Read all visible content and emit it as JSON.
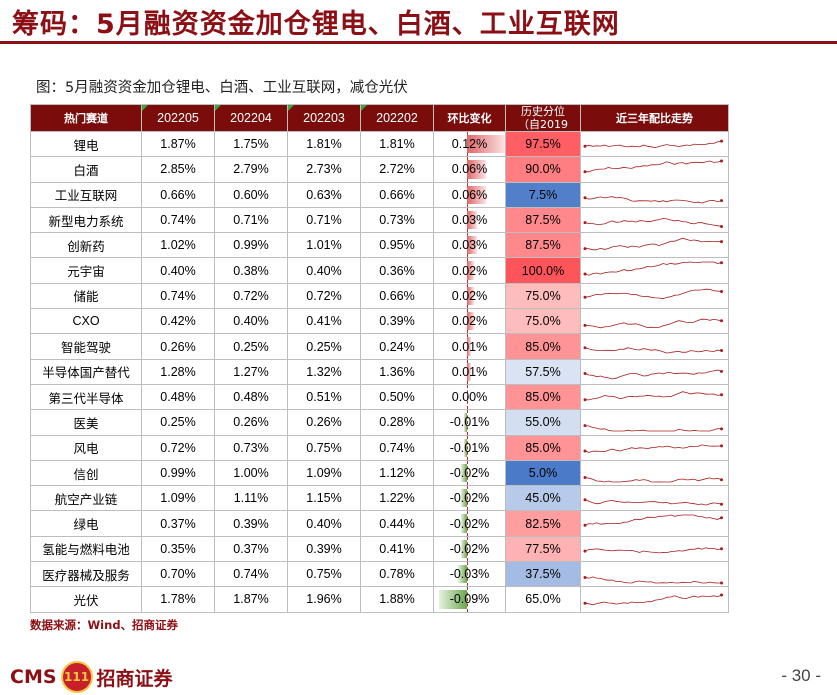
{
  "title": "筹码：5月融资资金加仓锂电、白酒、工业互联网",
  "figure_title": "图：5月融资资金加仓锂电、白酒、工业互联网，减仓光伏",
  "headers": [
    "热门赛道",
    "202205",
    "202204",
    "202203",
    "202202",
    "环比变化",
    "历史分位",
    "（自2019",
    "近三年配比走势"
  ],
  "rows": [
    {
      "name": "锂电",
      "v": [
        "1.87%",
        "1.75%",
        "1.81%",
        "1.81%"
      ],
      "chg": "0.12%",
      "chg_val": 0.12,
      "pct": "97.5%",
      "pct_val": 97.5
    },
    {
      "name": "白酒",
      "v": [
        "2.85%",
        "2.79%",
        "2.73%",
        "2.72%"
      ],
      "chg": "0.06%",
      "chg_val": 0.06,
      "pct": "90.0%",
      "pct_val": 90.0
    },
    {
      "name": "工业互联网",
      "v": [
        "0.66%",
        "0.60%",
        "0.63%",
        "0.66%"
      ],
      "chg": "0.06%",
      "chg_val": 0.06,
      "pct": "7.5%",
      "pct_val": 7.5
    },
    {
      "name": "新型电力系统",
      "v": [
        "0.74%",
        "0.71%",
        "0.71%",
        "0.73%"
      ],
      "chg": "0.03%",
      "chg_val": 0.03,
      "pct": "87.5%",
      "pct_val": 87.5
    },
    {
      "name": "创新药",
      "v": [
        "1.02%",
        "0.99%",
        "1.01%",
        "0.95%"
      ],
      "chg": "0.03%",
      "chg_val": 0.03,
      "pct": "87.5%",
      "pct_val": 87.5
    },
    {
      "name": "元宇宙",
      "v": [
        "0.40%",
        "0.38%",
        "0.40%",
        "0.36%"
      ],
      "chg": "0.02%",
      "chg_val": 0.02,
      "pct": "100.0%",
      "pct_val": 100.0
    },
    {
      "name": "储能",
      "v": [
        "0.74%",
        "0.72%",
        "0.72%",
        "0.66%"
      ],
      "chg": "0.02%",
      "chg_val": 0.02,
      "pct": "75.0%",
      "pct_val": 75.0
    },
    {
      "name": "CXO",
      "v": [
        "0.42%",
        "0.40%",
        "0.41%",
        "0.39%"
      ],
      "chg": "0.02%",
      "chg_val": 0.02,
      "pct": "75.0%",
      "pct_val": 75.0
    },
    {
      "name": "智能驾驶",
      "v": [
        "0.26%",
        "0.25%",
        "0.25%",
        "0.24%"
      ],
      "chg": "0.01%",
      "chg_val": 0.01,
      "pct": "85.0%",
      "pct_val": 85.0
    },
    {
      "name": "半导体国产替代",
      "v": [
        "1.28%",
        "1.27%",
        "1.32%",
        "1.36%"
      ],
      "chg": "0.01%",
      "chg_val": 0.01,
      "pct": "57.5%",
      "pct_val": 57.5
    },
    {
      "name": "第三代半导体",
      "v": [
        "0.48%",
        "0.48%",
        "0.51%",
        "0.50%"
      ],
      "chg": "0.00%",
      "chg_val": 0.0,
      "pct": "85.0%",
      "pct_val": 85.0
    },
    {
      "name": "医美",
      "v": [
        "0.25%",
        "0.26%",
        "0.26%",
        "0.28%"
      ],
      "chg": "-0.01%",
      "chg_val": -0.01,
      "pct": "55.0%",
      "pct_val": 55.0
    },
    {
      "name": "风电",
      "v": [
        "0.72%",
        "0.73%",
        "0.75%",
        "0.74%"
      ],
      "chg": "-0.01%",
      "chg_val": -0.01,
      "pct": "85.0%",
      "pct_val": 85.0
    },
    {
      "name": "信创",
      "v": [
        "0.99%",
        "1.00%",
        "1.09%",
        "1.12%"
      ],
      "chg": "-0.02%",
      "chg_val": -0.02,
      "pct": "5.0%",
      "pct_val": 5.0
    },
    {
      "name": "航空产业链",
      "v": [
        "1.09%",
        "1.11%",
        "1.15%",
        "1.22%"
      ],
      "chg": "-0.02%",
      "chg_val": -0.02,
      "pct": "45.0%",
      "pct_val": 45.0
    },
    {
      "name": "绿电",
      "v": [
        "0.37%",
        "0.39%",
        "0.40%",
        "0.44%"
      ],
      "chg": "-0.02%",
      "chg_val": -0.02,
      "pct": "82.5%",
      "pct_val": 82.5
    },
    {
      "name": "氢能与燃料电池",
      "v": [
        "0.35%",
        "0.37%",
        "0.39%",
        "0.41%"
      ],
      "chg": "-0.02%",
      "chg_val": -0.02,
      "pct": "77.5%",
      "pct_val": 77.5
    },
    {
      "name": "医疗器械及服务",
      "v": [
        "0.70%",
        "0.74%",
        "0.75%",
        "0.78%"
      ],
      "chg": "-0.03%",
      "chg_val": -0.03,
      "pct": "37.5%",
      "pct_val": 37.5
    },
    {
      "name": "光伏",
      "v": [
        "1.78%",
        "1.87%",
        "1.96%",
        "1.88%"
      ],
      "chg": "-0.09%",
      "chg_val": -0.09,
      "pct": "65.0%",
      "pct_val": 65.0
    }
  ],
  "sparkline_color": "#a81c1c",
  "source": "数据来源：Wind、招商证券",
  "logo": {
    "text_latin": "CMS",
    "badge": "111",
    "text_cn": "招商证券"
  },
  "page_number": "- 30 -",
  "colors": {
    "accent": "#8b0f14",
    "header_bg": "#7a0c0c",
    "pos_bar": "#e06666",
    "neg_bar": "#6aa84f",
    "high_pct": "#e8555a",
    "low_pct": "#4a7fc9"
  }
}
